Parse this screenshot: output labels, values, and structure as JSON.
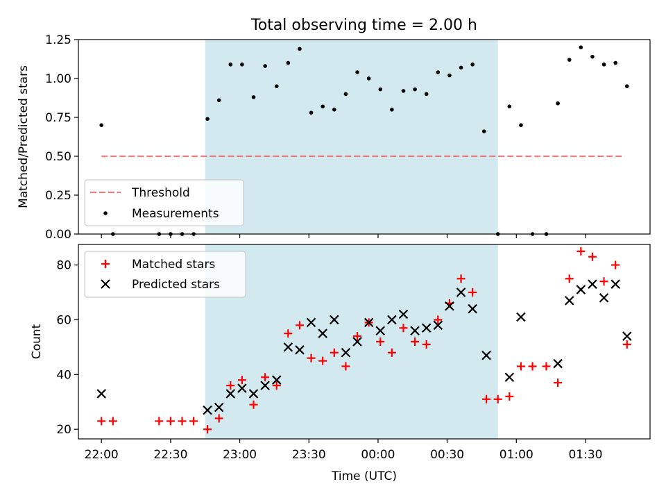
{
  "title": "Total observing time = 2.00 h",
  "colors": {
    "shade": "#d3e9f0",
    "threshold": "#f08080",
    "matched": "#ff0000",
    "predicted": "#000000",
    "measurement": "#000000"
  },
  "chart_data": [
    {
      "type": "scatter",
      "panel": "top",
      "xlabel": "",
      "ylabel": "Matched/Predicted stars",
      "ylim": [
        0,
        1.25
      ],
      "yticks": [
        0.0,
        0.25,
        0.5,
        0.75,
        1.0,
        1.25
      ],
      "ytick_labels": [
        "0.00",
        "0.25",
        "0.50",
        "0.75",
        "1.00",
        "1.25"
      ],
      "shaded_span": [
        "22:45",
        "00:52"
      ],
      "threshold_line": {
        "label": "Threshold",
        "y": 0.5,
        "x": [
          "22:00",
          "01:47"
        ]
      },
      "legend": {
        "placement": "lower-left",
        "entries": [
          "Threshold",
          "Measurements"
        ]
      },
      "series": [
        {
          "name": "Measurements",
          "points": [
            [
              "22:00",
              0.7
            ],
            [
              "22:05",
              0.0
            ],
            [
              "22:25",
              0.0
            ],
            [
              "22:30",
              0.0
            ],
            [
              "22:35",
              0.0
            ],
            [
              "22:40",
              0.0
            ],
            [
              "22:46",
              0.74
            ],
            [
              "22:51",
              0.86
            ],
            [
              "22:56",
              1.09
            ],
            [
              "23:01",
              1.09
            ],
            [
              "23:06",
              0.88
            ],
            [
              "23:11",
              1.08
            ],
            [
              "23:16",
              0.95
            ],
            [
              "23:21",
              1.1
            ],
            [
              "23:26",
              1.19
            ],
            [
              "23:31",
              0.78
            ],
            [
              "23:36",
              0.82
            ],
            [
              "23:41",
              0.8
            ],
            [
              "23:46",
              0.9
            ],
            [
              "23:51",
              1.04
            ],
            [
              "23:56",
              1.0
            ],
            [
              "00:01",
              0.93
            ],
            [
              "00:06",
              0.8
            ],
            [
              "00:11",
              0.92
            ],
            [
              "00:16",
              0.93
            ],
            [
              "00:21",
              0.9
            ],
            [
              "00:26",
              1.04
            ],
            [
              "00:31",
              1.02
            ],
            [
              "00:36",
              1.07
            ],
            [
              "00:41",
              1.09
            ],
            [
              "00:46",
              0.66
            ],
            [
              "00:52",
              0.0
            ],
            [
              "00:57",
              0.82
            ],
            [
              "01:02",
              0.7
            ],
            [
              "01:07",
              0.0
            ],
            [
              "01:13",
              0.0
            ],
            [
              "01:18",
              0.84
            ],
            [
              "01:23",
              1.12
            ],
            [
              "01:28",
              1.2
            ],
            [
              "01:33",
              1.14
            ],
            [
              "01:38",
              1.09
            ],
            [
              "01:43",
              1.1
            ],
            [
              "01:48",
              0.95
            ]
          ]
        }
      ]
    },
    {
      "type": "scatter",
      "panel": "bottom",
      "xlabel": "Time (UTC)",
      "ylabel": "Count",
      "ylim": [
        16.5,
        87.5
      ],
      "yticks": [
        20,
        40,
        60,
        80
      ],
      "ytick_labels": [
        "20",
        "40",
        "60",
        "80"
      ],
      "xlim": [
        "21:50",
        "01:58"
      ],
      "xticks": [
        "22:00",
        "22:30",
        "23:00",
        "23:30",
        "00:00",
        "00:30",
        "01:00",
        "01:30"
      ],
      "xtick_labels": [
        "22:00",
        "22:30",
        "23:00",
        "23:30",
        "00:00",
        "00:30",
        "01:00",
        "01:30"
      ],
      "shaded_span": [
        "22:45",
        "00:52"
      ],
      "legend": {
        "placement": "upper-left",
        "entries": [
          "Matched stars",
          "Predicted stars"
        ]
      },
      "series": [
        {
          "name": "Matched stars",
          "marker": "plus",
          "points": [
            [
              "22:00",
              23
            ],
            [
              "22:05",
              23
            ],
            [
              "22:25",
              23
            ],
            [
              "22:30",
              23
            ],
            [
              "22:35",
              23
            ],
            [
              "22:40",
              23
            ],
            [
              "22:46",
              20
            ],
            [
              "22:51",
              24
            ],
            [
              "22:56",
              36
            ],
            [
              "23:01",
              38
            ],
            [
              "23:06",
              29
            ],
            [
              "23:11",
              39
            ],
            [
              "23:16",
              36
            ],
            [
              "23:21",
              55
            ],
            [
              "23:26",
              58
            ],
            [
              "23:31",
              46
            ],
            [
              "23:36",
              45
            ],
            [
              "23:41",
              48
            ],
            [
              "23:46",
              43
            ],
            [
              "23:51",
              54
            ],
            [
              "23:56",
              59
            ],
            [
              "00:01",
              52
            ],
            [
              "00:06",
              48
            ],
            [
              "00:11",
              57
            ],
            [
              "00:16",
              52
            ],
            [
              "00:21",
              51
            ],
            [
              "00:26",
              60
            ],
            [
              "00:31",
              66
            ],
            [
              "00:36",
              75
            ],
            [
              "00:41",
              70
            ],
            [
              "00:47",
              31
            ],
            [
              "00:52",
              31
            ],
            [
              "00:57",
              32
            ],
            [
              "01:02",
              43
            ],
            [
              "01:07",
              43
            ],
            [
              "01:13",
              43
            ],
            [
              "01:18",
              37
            ],
            [
              "01:23",
              75
            ],
            [
              "01:28",
              85
            ],
            [
              "01:33",
              83
            ],
            [
              "01:38",
              74
            ],
            [
              "01:43",
              80
            ],
            [
              "01:48",
              51
            ]
          ]
        },
        {
          "name": "Predicted stars",
          "marker": "x",
          "points": [
            [
              "22:00",
              33
            ],
            [
              "22:46",
              27
            ],
            [
              "22:51",
              28
            ],
            [
              "22:56",
              33
            ],
            [
              "23:01",
              35
            ],
            [
              "23:06",
              33
            ],
            [
              "23:11",
              36
            ],
            [
              "23:16",
              38
            ],
            [
              "23:21",
              50
            ],
            [
              "23:26",
              49
            ],
            [
              "23:31",
              59
            ],
            [
              "23:36",
              55
            ],
            [
              "23:41",
              60
            ],
            [
              "23:46",
              48
            ],
            [
              "23:51",
              52
            ],
            [
              "23:56",
              59
            ],
            [
              "00:01",
              56
            ],
            [
              "00:06",
              60
            ],
            [
              "00:11",
              62
            ],
            [
              "00:16",
              56
            ],
            [
              "00:21",
              57
            ],
            [
              "00:26",
              58
            ],
            [
              "00:31",
              65
            ],
            [
              "00:36",
              70
            ],
            [
              "00:41",
              64
            ],
            [
              "00:47",
              47
            ],
            [
              "00:57",
              39
            ],
            [
              "01:02",
              61
            ],
            [
              "01:18",
              44
            ],
            [
              "01:23",
              67
            ],
            [
              "01:28",
              71
            ],
            [
              "01:33",
              73
            ],
            [
              "01:38",
              68
            ],
            [
              "01:43",
              73
            ],
            [
              "01:48",
              54
            ]
          ]
        }
      ]
    }
  ]
}
